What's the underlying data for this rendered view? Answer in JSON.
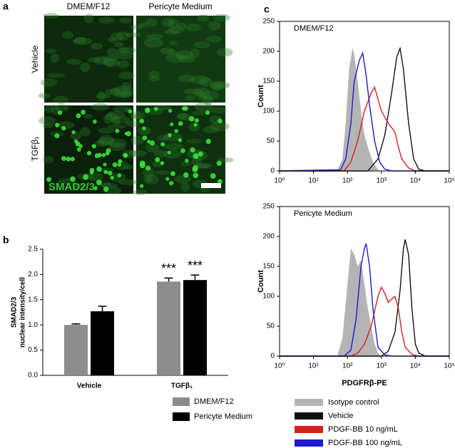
{
  "panel_a": {
    "label": "a",
    "columns": [
      "DMEM/F12",
      "Pericyte Medium"
    ],
    "rows": [
      "Vehicle",
      "TGFβ₁"
    ],
    "stain": "SMAD2/3"
  },
  "chart_data": [
    {
      "type": "bar",
      "label": "b",
      "categories": [
        "Vehicle",
        "TGFβ₁"
      ],
      "ylabel": [
        "SMAD2/3",
        "nuclear intensity/cell"
      ],
      "ylim": [
        0,
        2.5
      ],
      "yticks": [
        {
          "value": 0,
          "label": "0.0"
        },
        0.5,
        {
          "value": 1,
          "label": "1.0"
        },
        1.5,
        {
          "value": 2,
          "label": "2.0"
        },
        2.5
      ],
      "series": [
        {
          "name": "DMEM/F12",
          "color": "#8c8c8c",
          "values": [
            1.0,
            1.86
          ],
          "errors": [
            0.02,
            0.07
          ],
          "annotations": [
            null,
            "***"
          ]
        },
        {
          "name": "Pericyte Medium",
          "color": "#000000",
          "values": [
            1.27,
            1.89
          ],
          "errors": [
            0.1,
            0.1
          ],
          "annotations": [
            null,
            "***"
          ]
        }
      ]
    },
    {
      "type": "line",
      "label": "c",
      "title": "DMEM/F12",
      "xscale": "log",
      "ylabel": "Count",
      "xlim": [
        1,
        100000
      ],
      "xticks": [
        {
          "value": 1,
          "label": "10⁰"
        },
        {
          "value": 10,
          "label": "10¹"
        },
        {
          "value": 100,
          "label": "10²"
        },
        {
          "value": 1000,
          "label": "10³"
        },
        {
          "value": 10000,
          "label": "10⁴"
        },
        {
          "value": 100000,
          "label": "10⁵"
        }
      ],
      "ylim": [
        0,
        250
      ],
      "yticks": [
        0,
        50,
        100,
        150,
        200,
        250
      ],
      "series": [
        {
          "color": "#b4b4b4",
          "filled": true,
          "x": [
            1,
            50,
            71,
            89,
            112,
            141,
            158,
            200,
            251,
            316,
            398,
            562,
            794,
            1000,
            100000
          ],
          "values": [
            0,
            0,
            20,
            80,
            170,
            205,
            195,
            150,
            100,
            60,
            40,
            15,
            2,
            0,
            0
          ]
        },
        {
          "color": "#111111",
          "x": [
            1,
            398,
            794,
            1259,
            1995,
            2818,
            3548,
            4467,
            6310,
            8913,
            12589,
            19953,
            100000
          ],
          "values": [
            0,
            0,
            20,
            60,
            130,
            190,
            205,
            170,
            80,
            20,
            3,
            0,
            0
          ]
        },
        {
          "color": "#d42020",
          "x": [
            1,
            79,
            126,
            200,
            316,
            501,
            631,
            794,
            1000,
            1585,
            2512,
            3162,
            3981,
            6310,
            10000,
            100000
          ],
          "values": [
            0,
            0,
            15,
            50,
            100,
            130,
            140,
            120,
            100,
            80,
            65,
            40,
            20,
            5,
            0,
            0
          ]
        },
        {
          "color": "#1a1ad0",
          "x": [
            1,
            63,
            89,
            126,
            158,
            224,
            282,
            355,
            447,
            631,
            891,
            1259,
            1995,
            100000
          ],
          "values": [
            0,
            2,
            20,
            80,
            150,
            185,
            197,
            160,
            110,
            50,
            15,
            3,
            0,
            0
          ]
        }
      ]
    },
    {
      "type": "line",
      "title": "Pericyte Medium",
      "xscale": "log",
      "ylabel": "Count",
      "xlabel": "PDGFRβ-PE",
      "xlim": [
        1,
        100000
      ],
      "xticks": [
        {
          "value": 1,
          "label": "10⁰"
        },
        {
          "value": 10,
          "label": "10¹"
        },
        {
          "value": 100,
          "label": "10²"
        },
        {
          "value": 1000,
          "label": "10³"
        },
        {
          "value": 10000,
          "label": "10⁴"
        },
        {
          "value": 100000,
          "label": "10⁵"
        }
      ],
      "ylim": [
        0,
        250
      ],
      "yticks": [
        0,
        50,
        100,
        150,
        200,
        250
      ],
      "series": [
        {
          "name": "Isotype control",
          "color": "#b4b4b4",
          "filled": true,
          "x": [
            1,
            50,
            71,
            100,
            126,
            158,
            200,
            251,
            316,
            398,
            501,
            631,
            794,
            1000,
            100000
          ],
          "values": [
            0,
            0,
            30,
            120,
            180,
            170,
            150,
            160,
            120,
            80,
            50,
            20,
            5,
            0,
            0
          ]
        },
        {
          "name": "Vehicle",
          "color": "#111111",
          "x": [
            1,
            1000,
            1585,
            2512,
            3548,
            4467,
            5012,
            6310,
            7943,
            10000,
            12589,
            19953,
            100000
          ],
          "values": [
            0,
            0,
            8,
            40,
            110,
            180,
            195,
            170,
            80,
            20,
            5,
            0,
            0
          ]
        },
        {
          "name": "PDGF-BB 10 ng/mL",
          "color": "#d42020",
          "x": [
            1,
            126,
            200,
            316,
            501,
            794,
            1000,
            1259,
            1585,
            2512,
            3162,
            3981,
            5012,
            7943,
            12589,
            100000
          ],
          "values": [
            0,
            0,
            5,
            20,
            50,
            100,
            115,
            105,
            90,
            100,
            80,
            40,
            15,
            3,
            0,
            0
          ]
        },
        {
          "name": "PDGF-BB 100 ng/mL",
          "color": "#1a1ad0",
          "x": [
            1,
            79,
            126,
            178,
            251,
            316,
            355,
            447,
            562,
            794,
            1259,
            1995,
            100000
          ],
          "values": [
            0,
            0,
            10,
            60,
            150,
            180,
            188,
            150,
            80,
            15,
            2,
            0,
            0
          ]
        }
      ]
    }
  ]
}
